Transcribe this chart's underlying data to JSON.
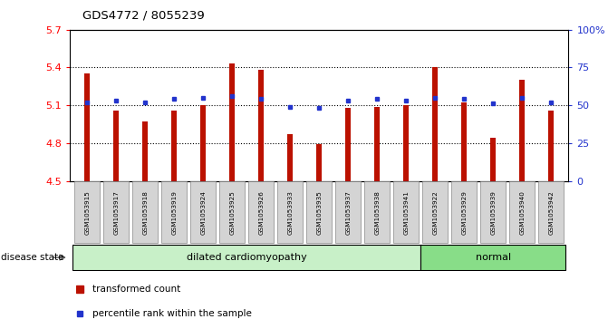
{
  "title": "GDS4772 / 8055239",
  "samples": [
    "GSM1053915",
    "GSM1053917",
    "GSM1053918",
    "GSM1053919",
    "GSM1053924",
    "GSM1053925",
    "GSM1053926",
    "GSM1053933",
    "GSM1053935",
    "GSM1053937",
    "GSM1053938",
    "GSM1053941",
    "GSM1053922",
    "GSM1053929",
    "GSM1053939",
    "GSM1053940",
    "GSM1053942"
  ],
  "bar_values": [
    5.35,
    5.06,
    4.97,
    5.06,
    5.1,
    5.43,
    5.38,
    4.87,
    4.79,
    5.08,
    5.09,
    5.1,
    5.4,
    5.12,
    4.84,
    5.3,
    5.06
  ],
  "percentile_values": [
    52,
    53,
    52,
    54,
    55,
    56,
    54,
    49,
    48,
    53,
    54,
    53,
    55,
    54,
    51,
    55,
    52
  ],
  "dilated_count": 12,
  "bar_color": "#bb1100",
  "percentile_color": "#2233cc",
  "ymin": 4.5,
  "ymax": 5.7,
  "yticks": [
    4.5,
    4.8,
    5.1,
    5.4,
    5.7
  ],
  "ytick_labels": [
    "4.5",
    "4.8",
    "5.1",
    "5.4",
    "5.7"
  ],
  "right_yticks": [
    0,
    25,
    50,
    75,
    100
  ],
  "right_ytick_labels": [
    "0",
    "25",
    "50",
    "75",
    "100%"
  ],
  "legend_entries": [
    "transformed count",
    "percentile rank within the sample"
  ],
  "disease_label": "disease state",
  "dilated_label": "dilated cardiomyopathy",
  "normal_label": "normal",
  "dilated_color": "#c8f0c8",
  "normal_color": "#88dd88",
  "sample_bg_color": "#d4d4d4",
  "plot_bg": "white"
}
